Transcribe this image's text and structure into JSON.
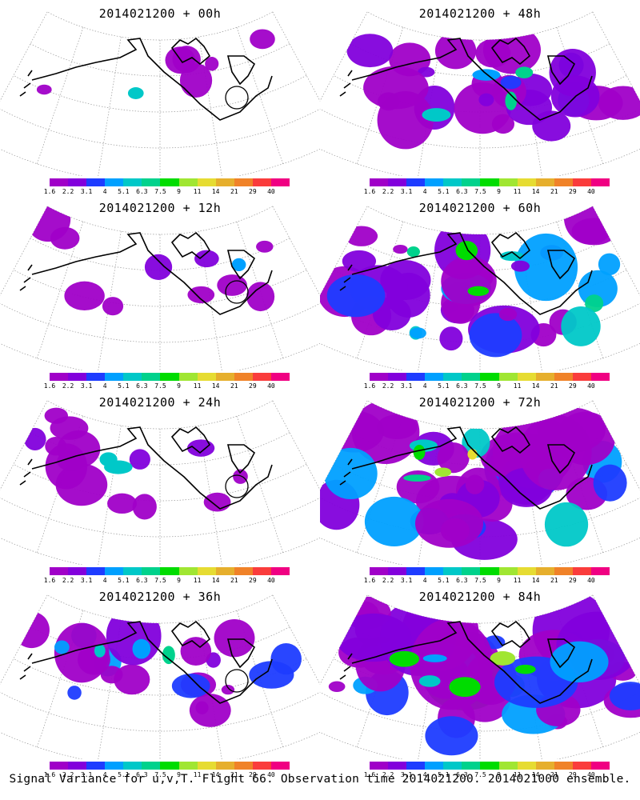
{
  "caption": "Signal Variance for u,v,T. Flight 66. Observation time 2014021200. 2014021000 ensemble.",
  "colorbar": {
    "labels": [
      "1.6",
      "2.2",
      "3.1",
      "4",
      "5.1",
      "6.3",
      "7.5",
      "9",
      "11",
      "14",
      "21",
      "29",
      "40"
    ],
    "colors": [
      "#a000c8",
      "#8200dc",
      "#1e3cff",
      "#00a0ff",
      "#00c8c8",
      "#00d28c",
      "#00dc00",
      "#a0e632",
      "#e6dc32",
      "#e6af2d",
      "#f08228",
      "#fa3c3c",
      "#f00082"
    ]
  },
  "panels": [
    {
      "title": "2014021200 + 00h",
      "coverage": 0.05,
      "intensity": 0.15,
      "marker": true
    },
    {
      "title": "2014021200 + 48h",
      "coverage": 0.55,
      "intensity": 0.45,
      "marker": false
    },
    {
      "title": "2014021200 + 12h",
      "coverage": 0.15,
      "intensity": 0.1,
      "marker": true
    },
    {
      "title": "2014021200 + 60h",
      "coverage": 0.75,
      "intensity": 0.55,
      "marker": false
    },
    {
      "title": "2014021200 + 24h",
      "coverage": 0.25,
      "intensity": 0.2,
      "marker": true
    },
    {
      "title": "2014021200 + 72h",
      "coverage": 0.85,
      "intensity": 0.65,
      "marker": false
    },
    {
      "title": "2014021200 + 36h",
      "coverage": 0.4,
      "intensity": 0.35,
      "marker": true
    },
    {
      "title": "2014021200 + 84h",
      "coverage": 0.9,
      "intensity": 0.7,
      "marker": false
    }
  ]
}
